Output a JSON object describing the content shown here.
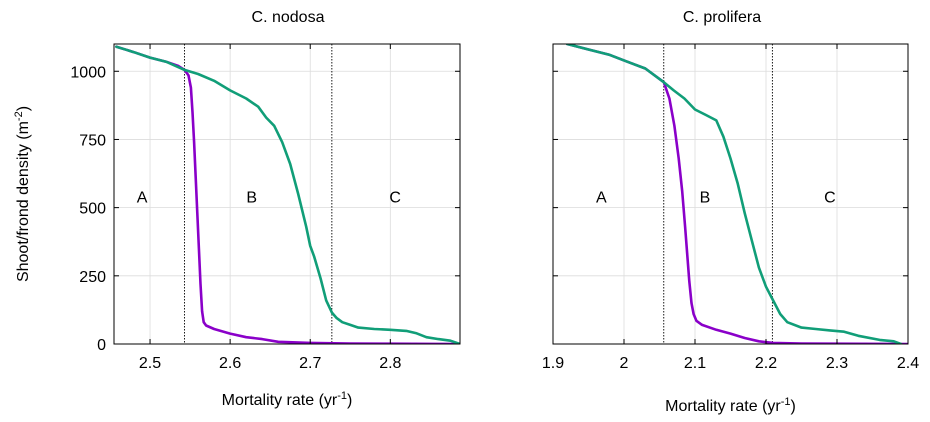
{
  "chart_data": [
    {
      "type": "line",
      "title": "C. nodosa",
      "xlabel": "Mortality rate (yr",
      "xlabel_sup": "-1",
      "xlabel_tail": ")",
      "ylabel": "Shoot/frond density (m",
      "ylabel_sup": "-2",
      "ylabel_tail": ")",
      "xlim": [
        2.455,
        2.887
      ],
      "ylim": [
        0,
        1100
      ],
      "xticks": [
        2.5,
        2.6,
        2.7,
        2.8
      ],
      "xtick_labels": [
        "2.5",
        "2.6",
        "2.7",
        "2.8"
      ],
      "yticks": [
        0,
        250,
        500,
        750,
        1000
      ],
      "ytick_labels": [
        "0",
        "250",
        "500",
        "750",
        "1000"
      ],
      "grid": true,
      "dividers": [
        2.543,
        2.727
      ],
      "regions": [
        {
          "label": "A",
          "x": 2.49,
          "y": 540
        },
        {
          "label": "B",
          "x": 2.627,
          "y": 540
        },
        {
          "label": "C",
          "x": 2.806,
          "y": 540
        }
      ],
      "series": [
        {
          "color": "#8a00c9",
          "x": [
            2.458,
            2.48,
            2.5,
            2.52,
            2.535,
            2.543,
            2.548,
            2.551,
            2.553,
            2.555,
            2.557,
            2.559,
            2.561,
            2.563,
            2.565,
            2.567,
            2.57,
            2.58,
            2.6,
            2.62,
            2.64,
            2.66,
            2.7,
            2.75,
            2.8,
            2.887
          ],
          "y": [
            1090,
            1070,
            1050,
            1035,
            1020,
            1005,
            985,
            940,
            850,
            740,
            610,
            480,
            350,
            220,
            120,
            80,
            68,
            55,
            38,
            25,
            18,
            8,
            4,
            2,
            1,
            0
          ]
        },
        {
          "color": "#119e78",
          "x": [
            2.458,
            2.48,
            2.5,
            2.52,
            2.543,
            2.56,
            2.58,
            2.6,
            2.62,
            2.635,
            2.645,
            2.655,
            2.665,
            2.675,
            2.685,
            2.695,
            2.7,
            2.705,
            2.713,
            2.72,
            2.727,
            2.733,
            2.74,
            2.75,
            2.76,
            2.78,
            2.8,
            2.82,
            2.832,
            2.845,
            2.86,
            2.875,
            2.887
          ],
          "y": [
            1090,
            1070,
            1050,
            1035,
            1005,
            990,
            965,
            930,
            900,
            870,
            830,
            800,
            740,
            660,
            550,
            430,
            360,
            320,
            240,
            160,
            115,
            95,
            80,
            70,
            60,
            55,
            52,
            48,
            40,
            25,
            18,
            12,
            0
          ]
        }
      ]
    },
    {
      "type": "line",
      "title": "C. prolifera",
      "xlabel": "Mortality rate (yr",
      "xlabel_sup": "-1",
      "xlabel_tail": ")",
      "xlim": [
        1.9,
        2.4
      ],
      "ylim": [
        0,
        1100
      ],
      "xticks": [
        1.9,
        2.0,
        2.1,
        2.2,
        2.3,
        2.4
      ],
      "xtick_labels": [
        "1.9",
        "2",
        "2.1",
        "2.2",
        "2.3",
        "2.4"
      ],
      "yticks": [
        0,
        250,
        500,
        750,
        1000
      ],
      "grid": true,
      "dividers": [
        2.056,
        2.209
      ],
      "regions": [
        {
          "label": "A",
          "x": 1.968,
          "y": 540
        },
        {
          "label": "B",
          "x": 2.114,
          "y": 540
        },
        {
          "label": "C",
          "x": 2.29,
          "y": 540
        }
      ],
      "series": [
        {
          "color": "#8a00c9",
          "x": [
            1.92,
            1.95,
            1.98,
            2.0,
            2.03,
            2.056,
            2.064,
            2.071,
            2.077,
            2.082,
            2.086,
            2.089,
            2.092,
            2.095,
            2.098,
            2.102,
            2.11,
            2.13,
            2.15,
            2.17,
            2.19,
            2.21,
            2.25,
            2.3,
            2.4
          ],
          "y": [
            1100,
            1080,
            1060,
            1040,
            1010,
            960,
            900,
            800,
            680,
            560,
            430,
            330,
            230,
            150,
            110,
            85,
            70,
            52,
            38,
            22,
            10,
            4,
            2,
            1,
            0
          ]
        },
        {
          "color": "#119e78",
          "x": [
            1.92,
            1.95,
            1.98,
            2.0,
            2.03,
            2.056,
            2.07,
            2.085,
            2.1,
            2.115,
            2.13,
            2.14,
            2.15,
            2.16,
            2.17,
            2.18,
            2.19,
            2.2,
            2.21,
            2.22,
            2.23,
            2.25,
            2.27,
            2.29,
            2.31,
            2.33,
            2.36,
            2.38,
            2.39
          ],
          "y": [
            1100,
            1080,
            1060,
            1040,
            1010,
            960,
            930,
            900,
            860,
            840,
            820,
            760,
            680,
            590,
            480,
            380,
            280,
            210,
            160,
            110,
            80,
            60,
            55,
            50,
            45,
            30,
            15,
            10,
            0
          ]
        }
      ]
    }
  ]
}
